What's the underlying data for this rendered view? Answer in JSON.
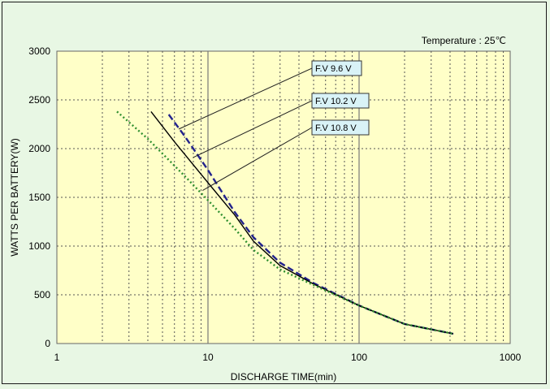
{
  "chart_data": {
    "type": "line",
    "title": "",
    "annotation": "Temperature : 25℃",
    "xlabel": "DISCHARGE TIME(min)",
    "ylabel": "WATTS PER BATTERY(W)",
    "x_scale": "log",
    "xlim": [
      1,
      1000
    ],
    "ylim": [
      0,
      3000
    ],
    "x_ticks": [
      "1",
      "10",
      "100",
      "1000"
    ],
    "y_ticks": [
      "0",
      "500",
      "1000",
      "1500",
      "2000",
      "2500",
      "3000"
    ],
    "grid": true,
    "colors": {
      "plot_background": "#ffffc8",
      "page_background": "#e8f7e4",
      "label_box": "#d9f3f7"
    },
    "series": [
      {
        "name": "F.V 9.6 V",
        "color": "#22228c",
        "style": "dashed",
        "x": [
          5.5,
          7,
          10,
          15,
          20,
          30,
          50,
          100,
          200,
          420
        ],
        "y": [
          2350,
          2130,
          1780,
          1350,
          1090,
          830,
          620,
          390,
          200,
          100
        ]
      },
      {
        "name": "F.V 10.2 V",
        "color": "#000000",
        "style": "solid",
        "x": [
          4.2,
          6,
          10,
          15,
          20,
          30,
          50,
          100,
          200,
          420
        ],
        "y": [
          2380,
          2070,
          1650,
          1320,
          1050,
          800,
          610,
          390,
          200,
          100
        ]
      },
      {
        "name": "F.V 10.8 V",
        "color": "#2f8f2f",
        "style": "dotted",
        "x": [
          2.5,
          4,
          7,
          10,
          15,
          20,
          30,
          50,
          100,
          200,
          420
        ],
        "y": [
          2380,
          2100,
          1720,
          1470,
          1180,
          960,
          760,
          600,
          390,
          200,
          100
        ]
      }
    ],
    "labels": [
      "F.V 9.6 V",
      "F.V 10.2 V",
      "F.V 10.8 V"
    ]
  }
}
